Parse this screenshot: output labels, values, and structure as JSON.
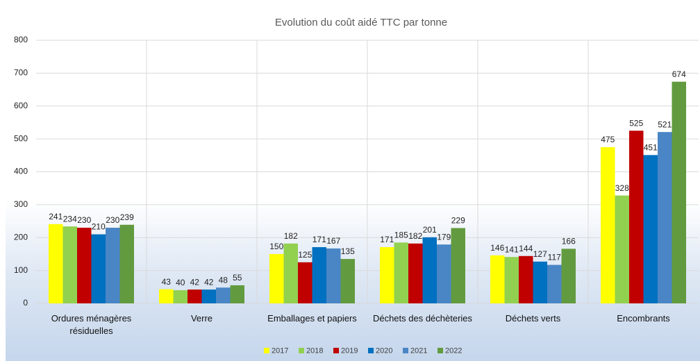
{
  "chart_data": {
    "type": "bar",
    "title": "Evolution du coût aidé TTC par tonne",
    "categories": [
      "Ordures ménagères résiduelles",
      "Verre",
      "Emballages et papiers",
      "Déchets des déchèteries",
      "Déchets verts",
      "Encombrants"
    ],
    "series": [
      {
        "name": "2017",
        "color": "#ffff00",
        "values": [
          241,
          43,
          150,
          171,
          146,
          475
        ]
      },
      {
        "name": "2018",
        "color": "#92d050",
        "values": [
          234,
          40,
          182,
          185,
          141,
          328
        ]
      },
      {
        "name": "2019",
        "color": "#c00000",
        "values": [
          230,
          42,
          125,
          182,
          144,
          525
        ]
      },
      {
        "name": "2020",
        "color": "#0070c0",
        "values": [
          210,
          42,
          171,
          201,
          127,
          451
        ]
      },
      {
        "name": "2021",
        "color": "#4a86c5",
        "values": [
          230,
          48,
          167,
          179,
          117,
          521
        ]
      },
      {
        "name": "2022",
        "color": "#629b3f",
        "values": [
          239,
          55,
          135,
          229,
          166,
          674
        ]
      }
    ],
    "ylim": [
      0,
      800
    ],
    "yticks": [
      0,
      100,
      200,
      300,
      400,
      500,
      600,
      700,
      800
    ],
    "grid": true,
    "legend": "bottom"
  }
}
